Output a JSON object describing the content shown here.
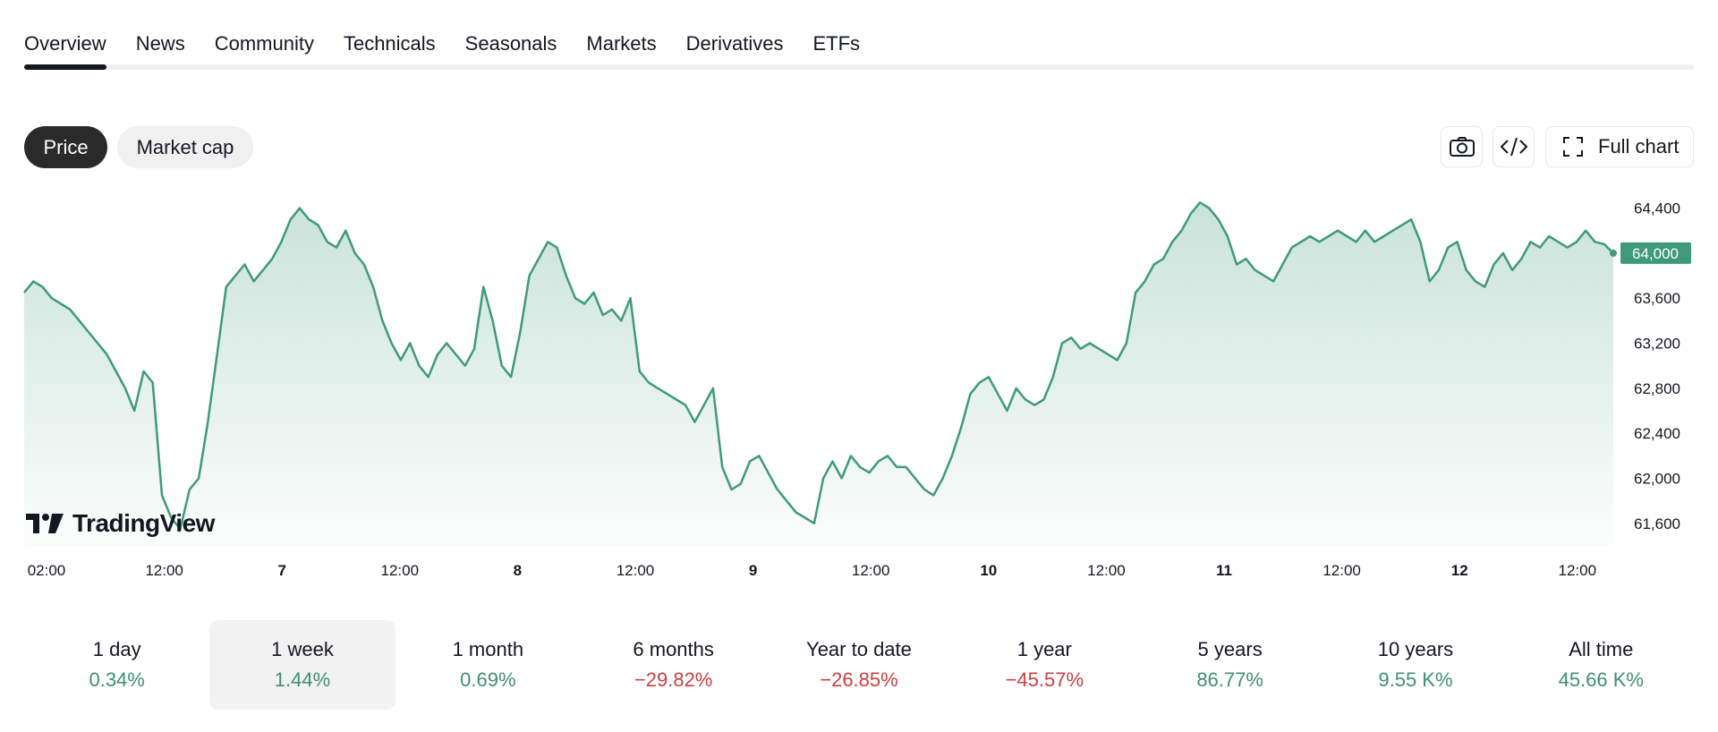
{
  "tabs": [
    {
      "label": "Overview",
      "active": true
    },
    {
      "label": "News"
    },
    {
      "label": "Community"
    },
    {
      "label": "Technicals"
    },
    {
      "label": "Seasonals"
    },
    {
      "label": "Markets"
    },
    {
      "label": "Derivatives"
    },
    {
      "label": "ETFs"
    }
  ],
  "toggle": {
    "price": "Price",
    "market_cap": "Market cap",
    "selected": "Price"
  },
  "toolbar": {
    "camera_icon": "camera-icon",
    "embed_icon": "code-icon",
    "full_chart_label": "Full chart",
    "full_chart_icon": "fullscreen-icon"
  },
  "logo": {
    "text": "TradingView",
    "icon": "tradingview-logo-icon"
  },
  "colors": {
    "line": "#3f9a7b",
    "positive": "#3f8f73",
    "negative": "#c94040",
    "price_tag": "#3f9a7b"
  },
  "chart_data": {
    "type": "area",
    "y_ticks": [
      "64,400",
      "64,000",
      "63,600",
      "63,200",
      "62,800",
      "62,400",
      "62,000",
      "61,600"
    ],
    "ylim": [
      61400,
      64500
    ],
    "x_ticks": [
      {
        "label": "02:00",
        "bold": false
      },
      {
        "label": "12:00",
        "bold": false
      },
      {
        "label": "7",
        "bold": true
      },
      {
        "label": "12:00",
        "bold": false
      },
      {
        "label": "8",
        "bold": true
      },
      {
        "label": "12:00",
        "bold": false
      },
      {
        "label": "9",
        "bold": true
      },
      {
        "label": "12:00",
        "bold": false
      },
      {
        "label": "10",
        "bold": true
      },
      {
        "label": "12:00",
        "bold": false
      },
      {
        "label": "11",
        "bold": true
      },
      {
        "label": "12:00",
        "bold": false
      },
      {
        "label": "12",
        "bold": true
      },
      {
        "label": "12:00",
        "bold": false
      }
    ],
    "current_price_label": "64,000",
    "current_price": 64000,
    "series": [
      {
        "values": [
          63650,
          63750,
          63700,
          63600,
          63550,
          63500,
          63400,
          63300,
          63200,
          63100,
          62950,
          62800,
          62600,
          62950,
          62850,
          61850,
          61650,
          61550,
          61900,
          62000,
          62500,
          63100,
          63700,
          63800,
          63900,
          63750,
          63850,
          63950,
          64100,
          64300,
          64400,
          64300,
          64250,
          64100,
          64050,
          64200,
          64000,
          63900,
          63700,
          63400,
          63200,
          63050,
          63200,
          63000,
          62900,
          63100,
          63200,
          63100,
          63000,
          63150,
          63700,
          63400,
          63000,
          62900,
          63300,
          63800,
          63950,
          64100,
          64050,
          63800,
          63600,
          63550,
          63650,
          63450,
          63500,
          63400,
          63600,
          62950,
          62850,
          62800,
          62750,
          62700,
          62650,
          62500,
          62650,
          62800,
          62100,
          61900,
          61950,
          62150,
          62200,
          62050,
          61900,
          61800,
          61700,
          61650,
          61600,
          62000,
          62150,
          62000,
          62200,
          62100,
          62050,
          62150,
          62200,
          62100,
          62100,
          62000,
          61900,
          61850,
          62000,
          62200,
          62450,
          62750,
          62850,
          62900,
          62750,
          62600,
          62800,
          62700,
          62650,
          62700,
          62900,
          63200,
          63250,
          63150,
          63200,
          63150,
          63100,
          63050,
          63200,
          63650,
          63750,
          63900,
          63950,
          64100,
          64200,
          64350,
          64450,
          64400,
          64300,
          64150,
          63900,
          63950,
          63850,
          63800,
          63750,
          63900,
          64050,
          64100,
          64150,
          64100,
          64150,
          64200,
          64150,
          64100,
          64200,
          64100,
          64150,
          64200,
          64250,
          64300,
          64100,
          63750,
          63850,
          64050,
          64100,
          63850,
          63750,
          63700,
          63900,
          64000,
          63850,
          63950,
          64100,
          64050,
          64150,
          64100,
          64050,
          64100,
          64200,
          64100,
          64080,
          64000
        ]
      }
    ]
  },
  "periods": [
    {
      "label": "1 day",
      "value": "0.34%",
      "trend": "pos"
    },
    {
      "label": "1 week",
      "value": "1.44%",
      "trend": "pos",
      "active": true
    },
    {
      "label": "1 month",
      "value": "0.69%",
      "trend": "pos"
    },
    {
      "label": "6 months",
      "value": "−29.82%",
      "trend": "neg"
    },
    {
      "label": "Year to date",
      "value": "−26.85%",
      "trend": "neg"
    },
    {
      "label": "1 year",
      "value": "−45.57%",
      "trend": "neg"
    },
    {
      "label": "5 years",
      "value": "86.77%",
      "trend": "pos"
    },
    {
      "label": "10 years",
      "value": "9.55 K%",
      "trend": "pos"
    },
    {
      "label": "All time",
      "value": "45.66 K%",
      "trend": "pos"
    }
  ]
}
